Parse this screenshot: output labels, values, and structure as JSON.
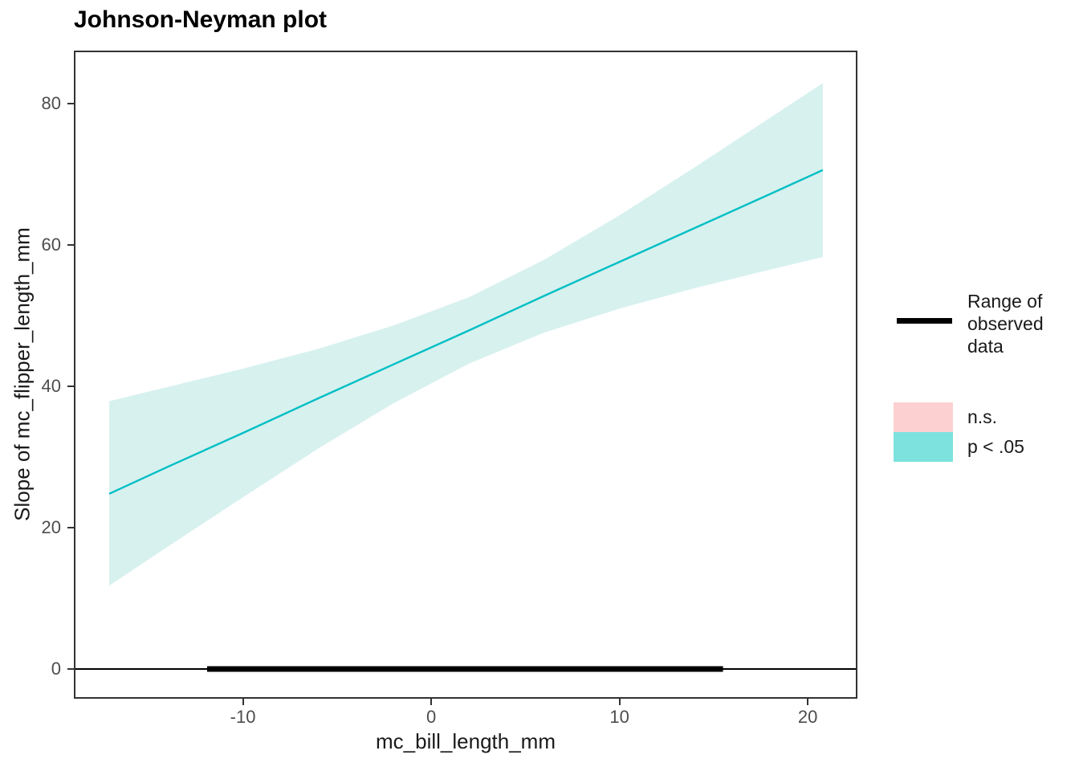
{
  "title": "Johnson-Neyman plot",
  "axes": {
    "x": {
      "label": "mc_bill_length_mm",
      "ticks": [
        -10,
        0,
        10,
        20
      ],
      "domain": [
        -18.98,
        22.64
      ]
    },
    "y": {
      "label": "Slope of mc_flipper_length_mm",
      "ticks": [
        0,
        20,
        40,
        60,
        80
      ],
      "domain": [
        -4.2,
        87.5
      ]
    }
  },
  "legend": {
    "range_label": "Range of observed data",
    "items": [
      {
        "label": "n.s.",
        "color": "#FCD0D0"
      },
      {
        "label": "p < .05",
        "color": "#7DE2DD"
      }
    ]
  },
  "colors": {
    "line": "#00BFC4",
    "ribbon": "#D7F1EF",
    "observed_range": "#000000",
    "zero_line": "#000000",
    "axis_text": "#4D4D4D",
    "panel_border": "#333333"
  },
  "chart_data": {
    "type": "line",
    "title": "Johnson-Neyman plot",
    "xlabel": "mc_bill_length_mm",
    "ylabel": "Slope of mc_flipper_length_mm",
    "xlim": [
      -18.98,
      22.64
    ],
    "ylim": [
      -4.2,
      87.5
    ],
    "x_ticks": [
      -10,
      0,
      10,
      20
    ],
    "y_ticks": [
      0,
      20,
      40,
      60,
      80
    ],
    "grid": false,
    "legend_position": "right",
    "ribbon_significance": "p < .05",
    "series": [
      {
        "name": "slope estimate with 95% CI ribbon (p < .05)",
        "type": "line+ribbon",
        "x": [
          -17.1,
          -14.0,
          -10.0,
          -6.0,
          -2.0,
          2.0,
          6.0,
          10.0,
          14.0,
          18.0,
          20.8
        ],
        "y": [
          24.8,
          28.6,
          33.4,
          38.3,
          43.1,
          47.9,
          52.8,
          57.6,
          62.4,
          67.2,
          70.6
        ],
        "ci_upper": [
          37.9,
          39.9,
          42.5,
          45.3,
          48.6,
          52.6,
          57.9,
          64.2,
          71.0,
          78.0,
          82.9
        ],
        "ci_lower": [
          11.8,
          17.3,
          24.3,
          31.2,
          37.6,
          43.2,
          47.6,
          51.0,
          53.9,
          56.5,
          58.3
        ]
      },
      {
        "name": "Range of observed data",
        "type": "segment",
        "y": 0,
        "x_start": -11.9,
        "x_end": 15.5
      }
    ],
    "zero_line_y": 0
  }
}
